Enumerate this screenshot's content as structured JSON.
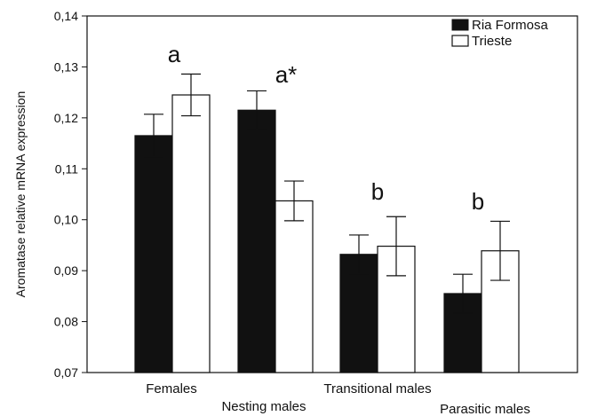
{
  "chart_data": {
    "type": "bar",
    "ylabel": "Aromatase relative mRNA expression",
    "ylim": [
      0.07,
      0.14
    ],
    "yticks": [
      "0,07",
      "0,08",
      "0,09",
      "0,10",
      "0,11",
      "0,12",
      "0,13",
      "0,14"
    ],
    "categories": [
      "Females",
      "Nesting males",
      "Transitional males",
      "Parasitic males"
    ],
    "series": [
      {
        "name": "Ria Formosa",
        "color": "#111111",
        "values": [
          0.1165,
          0.1215,
          0.0932,
          0.0855
        ],
        "error": [
          0.0042,
          0.0038,
          0.0038,
          0.0038
        ]
      },
      {
        "name": "Trieste",
        "color": "#ffffff",
        "values": [
          0.1245,
          0.1037,
          0.0948,
          0.0939
        ],
        "error": [
          0.0041,
          0.0039,
          0.0058,
          0.0058
        ]
      }
    ],
    "annotations": [
      "a",
      "a*",
      "b",
      "b"
    ],
    "legend_position": "top-right",
    "grid": false
  }
}
